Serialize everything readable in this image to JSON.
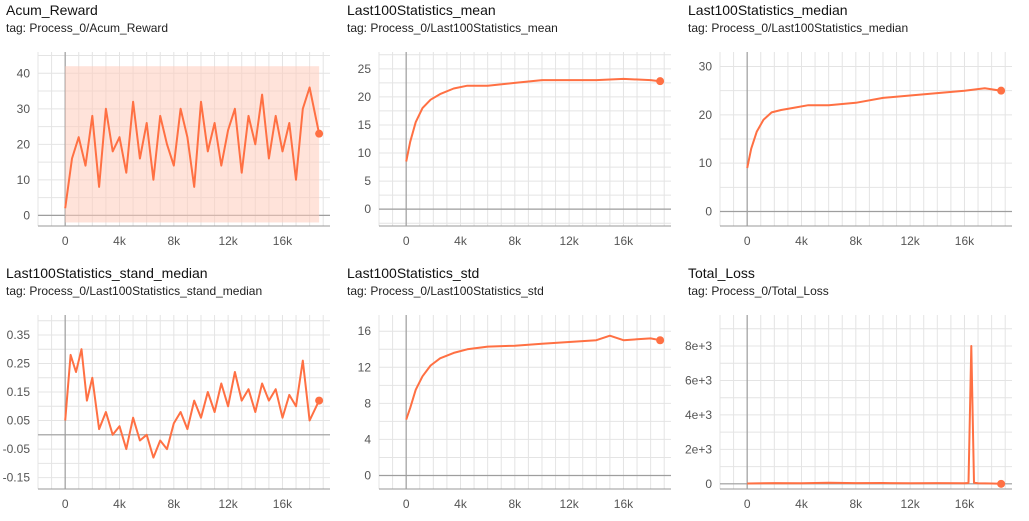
{
  "colors": {
    "line": "#ff7043",
    "band": "#ffccbc",
    "grid": "#e4e4e4",
    "axis": "#999999",
    "zero": "#9e9e9e"
  },
  "charts": [
    {
      "id": "acum",
      "title": "Acum_Reward",
      "tag": "tag: Process_0/Acum_Reward"
    },
    {
      "id": "mean",
      "title": "Last100Statistics_mean",
      "tag": "tag: Process_0/Last100Statistics_mean"
    },
    {
      "id": "median",
      "title": "Last100Statistics_median",
      "tag": "tag: Process_0/Last100Statistics_median"
    },
    {
      "id": "stdmed",
      "title": "Last100Statistics_stand_median",
      "tag": "tag: Process_0/Last100Statistics_stand_median"
    },
    {
      "id": "std",
      "title": "Last100Statistics_std",
      "tag": "tag: Process_0/Last100Statistics_std"
    },
    {
      "id": "loss",
      "title": "Total_Loss",
      "tag": "tag: Process_0/Total_Loss"
    }
  ],
  "chart_data": [
    {
      "type": "line",
      "title": "Acum_Reward",
      "xticks": [
        "0",
        "4k",
        "8k",
        "12k",
        "16k"
      ],
      "xtick_values": [
        0,
        4000,
        8000,
        12000,
        16000
      ],
      "yticks": [
        "0",
        "10",
        "20",
        "30",
        "40"
      ],
      "ytick_values": [
        0,
        10,
        20,
        30,
        40
      ],
      "xlim": [
        -2000,
        19500
      ],
      "ylim": [
        -3,
        46
      ],
      "grid": true,
      "smoothed_band": [
        -2,
        42
      ],
      "series": [
        {
          "x": [
            0,
            500,
            1000,
            1500,
            2000,
            2500,
            3000,
            3500,
            4000,
            4500,
            5000,
            5500,
            6000,
            6500,
            7000,
            7500,
            8000,
            8500,
            9000,
            9500,
            10000,
            10500,
            11000,
            11500,
            12000,
            12500,
            13000,
            13500,
            14000,
            14500,
            15000,
            15500,
            16000,
            16500,
            17000,
            17500,
            18000,
            18700
          ],
          "y": [
            2,
            16,
            22,
            14,
            28,
            8,
            30,
            18,
            22,
            12,
            32,
            16,
            26,
            10,
            28,
            20,
            14,
            30,
            22,
            8,
            32,
            18,
            26,
            14,
            24,
            30,
            12,
            28,
            20,
            34,
            16,
            28,
            18,
            26,
            10,
            30,
            36,
            23
          ]
        }
      ]
    },
    {
      "type": "line",
      "title": "Last100Statistics_mean",
      "xticks": [
        "0",
        "4k",
        "8k",
        "12k",
        "16k"
      ],
      "xtick_values": [
        0,
        4000,
        8000,
        12000,
        16000
      ],
      "yticks": [
        "0",
        "5",
        "10",
        "15",
        "20",
        "25"
      ],
      "ytick_values": [
        0,
        5,
        10,
        15,
        20,
        25
      ],
      "xlim": [
        -2000,
        19500
      ],
      "ylim": [
        -3,
        28
      ],
      "grid": true,
      "series": [
        {
          "x": [
            0,
            300,
            700,
            1200,
            1800,
            2500,
            3500,
            4500,
            6000,
            8000,
            10000,
            12000,
            14000,
            16000,
            18000,
            18700
          ],
          "y": [
            8.5,
            12,
            15.5,
            18,
            19.5,
            20.5,
            21.5,
            22,
            22,
            22.5,
            23,
            23,
            23,
            23.2,
            23,
            22.8
          ]
        }
      ]
    },
    {
      "type": "line",
      "title": "Last100Statistics_median",
      "xticks": [
        "0",
        "4k",
        "8k",
        "12k",
        "16k"
      ],
      "xtick_values": [
        0,
        4000,
        8000,
        12000,
        16000
      ],
      "yticks": [
        "0",
        "10",
        "20",
        "30"
      ],
      "ytick_values": [
        0,
        10,
        20,
        30
      ],
      "xlim": [
        -2000,
        19500
      ],
      "ylim": [
        -3,
        33
      ],
      "grid": true,
      "series": [
        {
          "x": [
            0,
            300,
            700,
            1200,
            1800,
            2500,
            3500,
            4500,
            6000,
            8000,
            10000,
            12000,
            14000,
            16000,
            17500,
            18700
          ],
          "y": [
            9,
            13,
            16.5,
            19,
            20.5,
            21,
            21.5,
            22,
            22,
            22.5,
            23.5,
            24,
            24.5,
            25,
            25.5,
            25
          ]
        }
      ]
    },
    {
      "type": "line",
      "title": "Last100Statistics_stand_median",
      "xticks": [
        "0",
        "4k",
        "8k",
        "12k",
        "16k"
      ],
      "xtick_values": [
        0,
        4000,
        8000,
        12000,
        16000
      ],
      "yticks": [
        "-0.15",
        "-0.05",
        "0.05",
        "0.15",
        "0.25",
        "0.35"
      ],
      "ytick_values": [
        -0.15,
        -0.05,
        0.05,
        0.15,
        0.25,
        0.35
      ],
      "xlim": [
        -2000,
        19500
      ],
      "ylim": [
        -0.19,
        0.42
      ],
      "grid": true,
      "series": [
        {
          "x": [
            0,
            400,
            800,
            1200,
            1600,
            2000,
            2500,
            3000,
            3500,
            4000,
            4500,
            5000,
            5500,
            6000,
            6500,
            7000,
            7500,
            8000,
            8500,
            9000,
            9500,
            10000,
            10500,
            11000,
            11500,
            12000,
            12500,
            13000,
            13500,
            14000,
            14500,
            15000,
            15500,
            16000,
            16500,
            17000,
            17500,
            18000,
            18700
          ],
          "y": [
            0.05,
            0.28,
            0.22,
            0.3,
            0.12,
            0.2,
            0.02,
            0.08,
            0.0,
            0.03,
            -0.05,
            0.06,
            -0.02,
            0.0,
            -0.08,
            -0.02,
            -0.05,
            0.04,
            0.08,
            0.02,
            0.12,
            0.06,
            0.15,
            0.08,
            0.18,
            0.1,
            0.22,
            0.12,
            0.16,
            0.08,
            0.18,
            0.12,
            0.16,
            0.06,
            0.14,
            0.1,
            0.26,
            0.05,
            0.12
          ]
        }
      ]
    },
    {
      "type": "line",
      "title": "Last100Statistics_std",
      "xticks": [
        "0",
        "4k",
        "8k",
        "12k",
        "16k"
      ],
      "xtick_values": [
        0,
        4000,
        8000,
        12000,
        16000
      ],
      "yticks": [
        "0",
        "4",
        "8",
        "12",
        "16"
      ],
      "ytick_values": [
        0,
        4,
        8,
        12,
        16
      ],
      "xlim": [
        -2000,
        19500
      ],
      "ylim": [
        -1.5,
        17.8
      ],
      "grid": true,
      "series": [
        {
          "x": [
            0,
            300,
            700,
            1200,
            1800,
            2500,
            3500,
            4500,
            6000,
            8000,
            10000,
            12000,
            14000,
            15000,
            16000,
            17000,
            18000,
            18700
          ],
          "y": [
            6.2,
            7.5,
            9.5,
            11,
            12.2,
            13,
            13.6,
            14,
            14.3,
            14.4,
            14.6,
            14.8,
            15,
            15.5,
            15,
            15.1,
            15.2,
            15
          ]
        }
      ]
    },
    {
      "type": "line",
      "title": "Total_Loss",
      "xticks": [
        "0",
        "4k",
        "8k",
        "12k",
        "16k"
      ],
      "xtick_values": [
        0,
        4000,
        8000,
        12000,
        16000
      ],
      "yticks": [
        "0",
        "2e+3",
        "4e+3",
        "6e+3",
        "8e+3"
      ],
      "ytick_values": [
        0,
        2000,
        4000,
        6000,
        8000
      ],
      "xlim": [
        -2000,
        19500
      ],
      "ylim": [
        -300,
        9800
      ],
      "grid": true,
      "series": [
        {
          "x": [
            0,
            2000,
            4000,
            6000,
            8000,
            10000,
            12000,
            14000,
            16000,
            16300,
            16500,
            16700,
            17000,
            18000,
            18700
          ],
          "y": [
            20,
            40,
            30,
            60,
            40,
            50,
            30,
            40,
            30,
            50,
            8000,
            60,
            30,
            20,
            0
          ]
        }
      ]
    }
  ]
}
